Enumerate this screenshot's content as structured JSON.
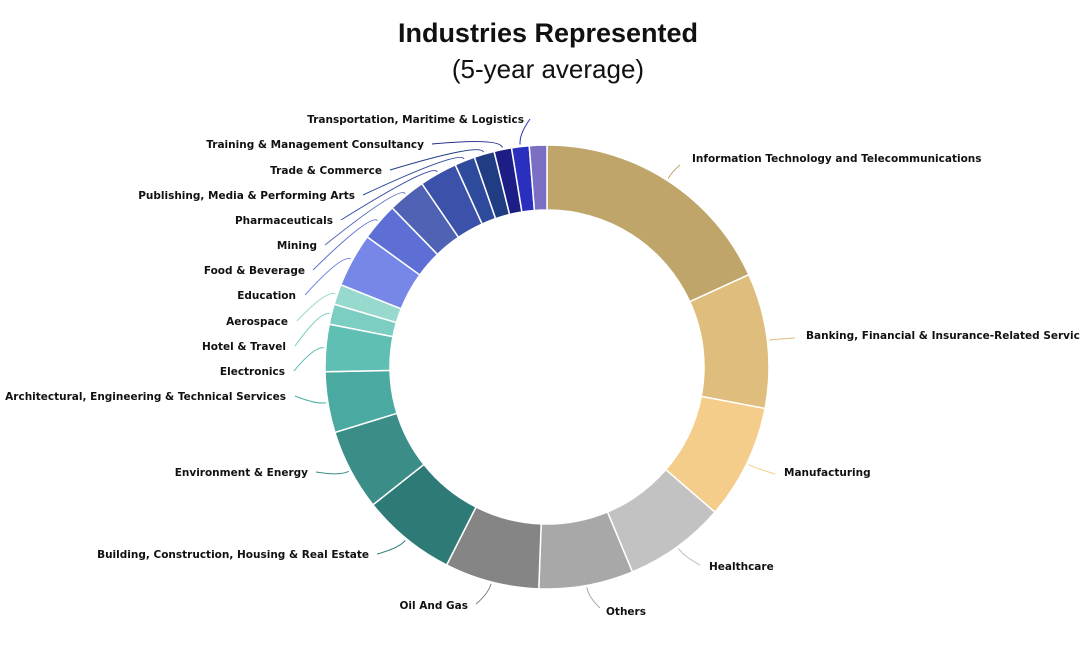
{
  "chart_data": {
    "type": "pie",
    "donut": true,
    "title": "Industries Represented",
    "subtitle": "(5-year average)",
    "legend": "none",
    "slices": [
      {
        "label": "Information Technology and Telecommunications",
        "value": 18.5,
        "color": "#bfa56a"
      },
      {
        "label": "Banking, Financial & Insurance-Related Services",
        "value": 10.0,
        "color": "#dfbd7c"
      },
      {
        "label": "Manufacturing",
        "value": 8.5,
        "color": "#f4cd8b"
      },
      {
        "label": "Healthcare",
        "value": 7.5,
        "color": "#c2c2c2"
      },
      {
        "label": "Others",
        "value": 7.0,
        "color": "#a8a8a8"
      },
      {
        "label": "Oil And Gas",
        "value": 7.0,
        "color": "#858585"
      },
      {
        "label": "Building, Construction, Housing & Real Estate",
        "value": 7.0,
        "color": "#2e7a76"
      },
      {
        "label": "Environment & Energy",
        "value": 6.0,
        "color": "#3b8e87"
      },
      {
        "label": "Architectural, Engineering & Technical Services",
        "value": 4.5,
        "color": "#4aa9a0"
      },
      {
        "label": "Electronics",
        "value": 3.5,
        "color": "#5fbfb3"
      },
      {
        "label": "Hotel & Travel",
        "value": 1.5,
        "color": "#7ccdc2"
      },
      {
        "label": "Aerospace",
        "value": 1.5,
        "color": "#98d9cd"
      },
      {
        "label": "Education",
        "value": 4.0,
        "color": "#7787e8"
      },
      {
        "label": "Food & Beverage",
        "value": 2.8,
        "color": "#5d6fd4"
      },
      {
        "label": "Mining",
        "value": 2.8,
        "color": "#4f62b4"
      },
      {
        "label": "Pharmaceuticals",
        "value": 2.8,
        "color": "#3c51aa"
      },
      {
        "label": "Publishing, Media & Performing Arts",
        "value": 1.5,
        "color": "#2e4a9c"
      },
      {
        "label": "Trade & Commerce",
        "value": 1.5,
        "color": "#203d84"
      },
      {
        "label": "Training & Management Consultancy",
        "value": 1.3,
        "color": "#1d1d86"
      },
      {
        "label": "Transportation, Maritime & Logistics",
        "value": 1.3,
        "color": "#2b2fbd"
      },
      {
        "label": "",
        "value": 1.3,
        "color": "#7b6fc4"
      }
    ]
  }
}
